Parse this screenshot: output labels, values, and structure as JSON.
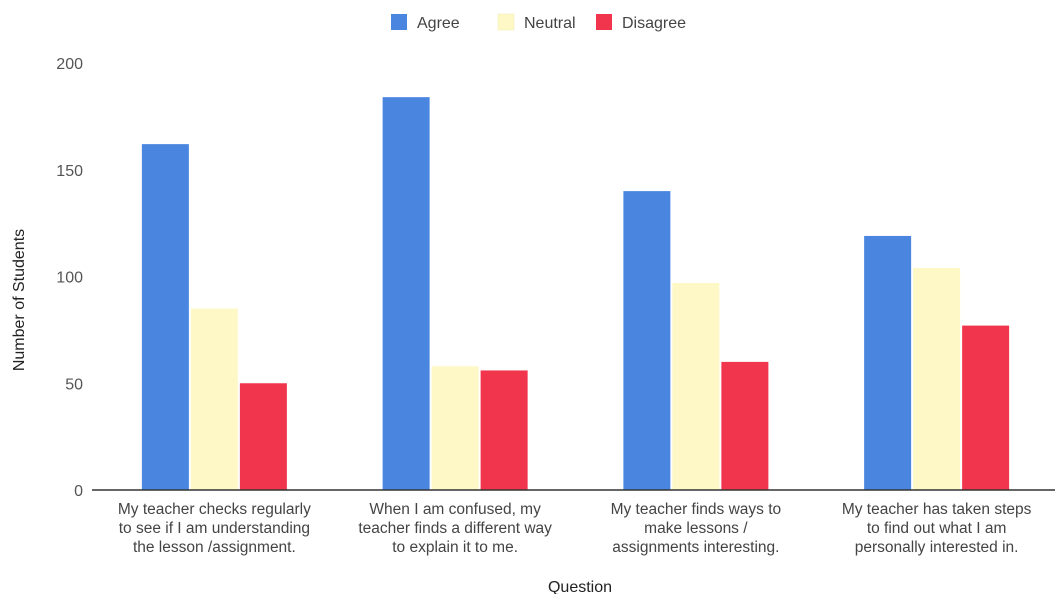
{
  "chart_data": {
    "type": "bar",
    "xlabel": "Question",
    "ylabel": "Number of Students",
    "ylim": [
      0,
      200
    ],
    "yticks": [
      0,
      50,
      100,
      150,
      200
    ],
    "grid": false,
    "legend_position": "top-center",
    "categories": [
      [
        "My teacher checks regularly",
        "to see if I am understanding",
        "the lesson /assignment."
      ],
      [
        "When I am confused, my",
        "teacher finds a different way",
        "to explain it to me."
      ],
      [
        "My teacher finds ways to",
        "make lessons /",
        "assignments interesting."
      ],
      [
        "My teacher has taken steps",
        "to find out what I am",
        "personally interested in."
      ]
    ],
    "series": [
      {
        "name": "Agree",
        "color": "#4a86e0",
        "values": [
          162,
          184,
          140,
          119
        ]
      },
      {
        "name": "Neutral",
        "color": "#fdf8c6",
        "values": [
          85,
          58,
          97,
          104
        ]
      },
      {
        "name": "Disagree",
        "color": "#f0354d",
        "values": [
          50,
          56,
          60,
          77
        ]
      }
    ]
  }
}
